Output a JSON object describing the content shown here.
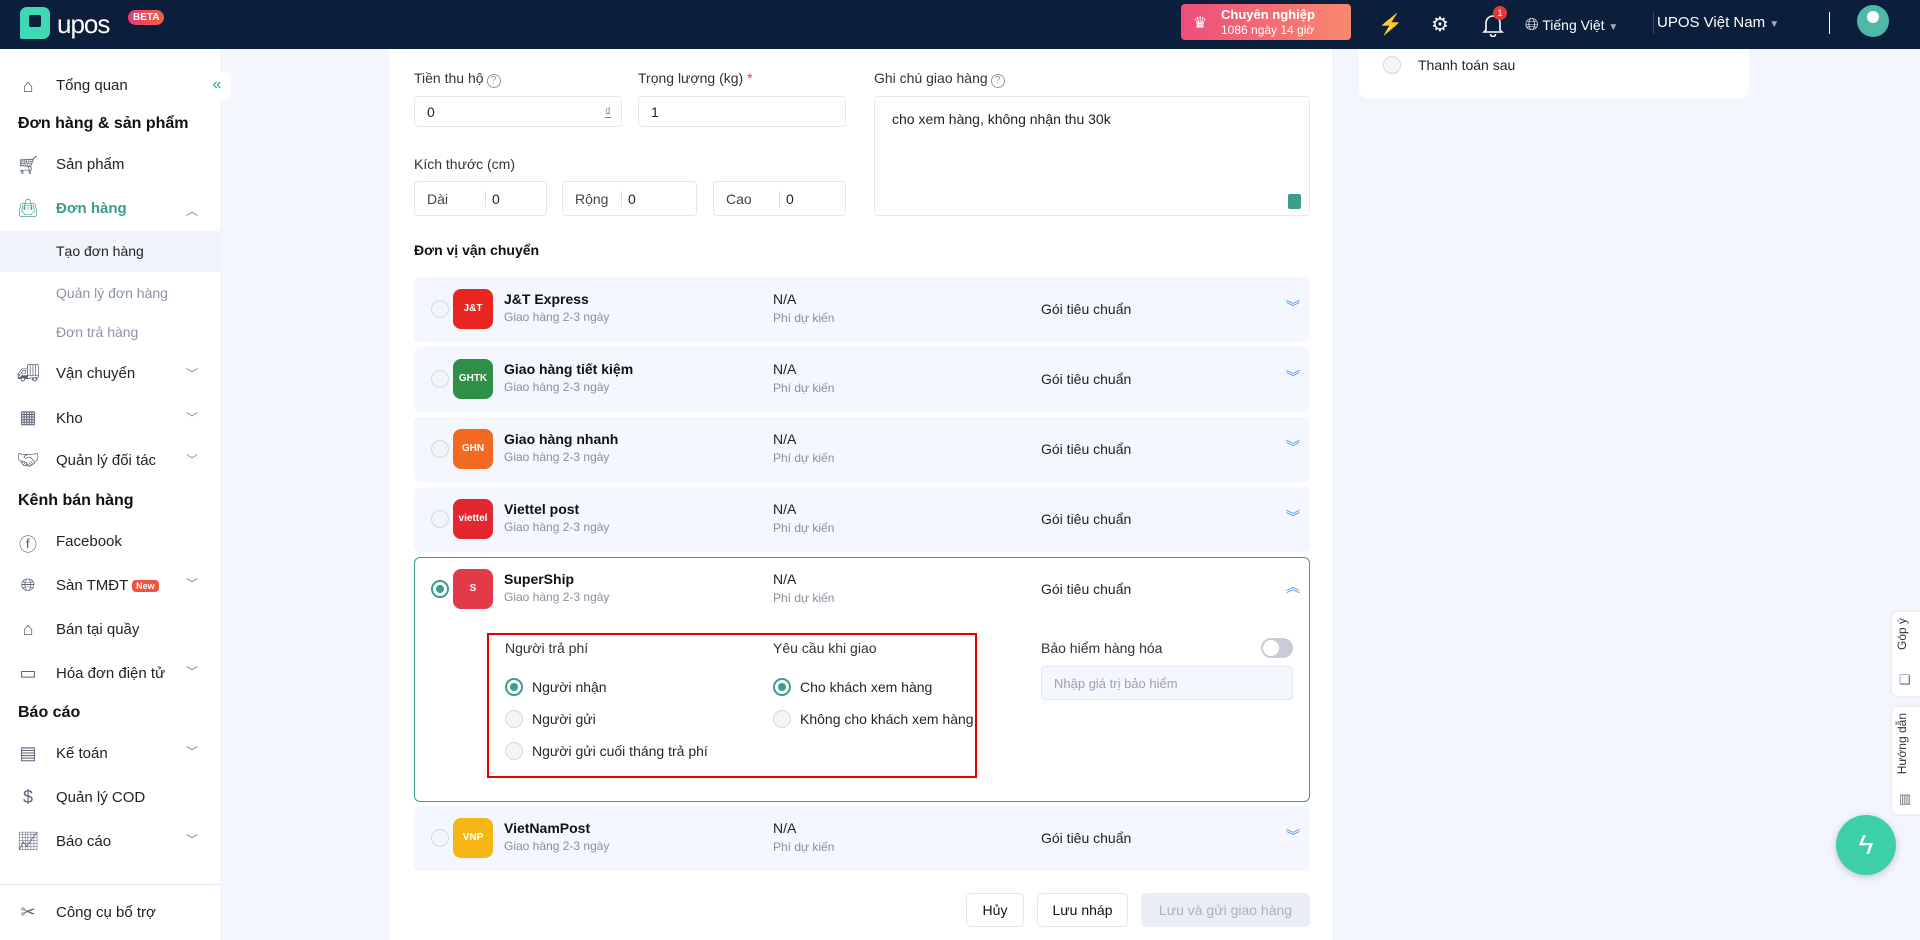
{
  "header": {
    "logo": "upos",
    "beta": "BETA",
    "plan_title": "Chuyên nghiệp",
    "plan_remaining": "1086 ngày 14 giờ",
    "notification_count": "1",
    "language": "Tiếng Việt",
    "company": "UPOS Việt Nam"
  },
  "sidebar": {
    "overview": "Tổng quan",
    "section_orders": "Đơn hàng & sản phẩm",
    "products": "Sản phẩm",
    "orders": "Đơn hàng",
    "create_order": "Tạo đơn hàng",
    "manage_orders": "Quản lý đơn hàng",
    "returns": "Đơn trả hàng",
    "shipping": "Vận chuyển",
    "warehouse": "Kho",
    "partners": "Quản lý đối tác",
    "section_channels": "Kênh bán hàng",
    "facebook": "Facebook",
    "ecommerce": "Sàn TMĐT",
    "new_badge": "New",
    "pos": "Bán tại quầy",
    "einvoice": "Hóa đơn điện tử",
    "section_reports": "Báo cáo",
    "accounting": "Kế toán",
    "cod": "Quản lý COD",
    "reports": "Báo cáo",
    "tools": "Công cụ bổ trợ"
  },
  "form": {
    "cod_label": "Tiền thu hộ",
    "cod_value": "0",
    "currency": "₫",
    "weight_label": "Trọng lượng (kg)",
    "required": "*",
    "weight_value": "1",
    "note_label": "Ghi chú giao hàng",
    "note_value": "cho xem hàng, không nhận thu 30k",
    "size_label": "Kích thước (cm)",
    "length_label": "Dài",
    "length_value": "0",
    "width_label": "Rộng",
    "width_value": "0",
    "height_label": "Cao",
    "height_value": "0",
    "carrier_section": "Đơn vị vận chuyển"
  },
  "carriers": [
    {
      "name": "J&T Express",
      "days": "Giao hàng 2-3 ngày",
      "fee": "N/A",
      "fee_label": "Phí dự kiến",
      "package": "Gói tiêu chuẩn",
      "logo": "J&T",
      "color": "#e8261f",
      "selected": false
    },
    {
      "name": "Giao hàng tiết kiệm",
      "days": "Giao hàng 2-3 ngày",
      "fee": "N/A",
      "fee_label": "Phí dự kiến",
      "package": "Gói tiêu chuẩn",
      "logo": "GHTK",
      "color": "#2f8f46",
      "selected": false
    },
    {
      "name": "Giao hàng nhanh",
      "days": "Giao hàng 2-3 ngày",
      "fee": "N/A",
      "fee_label": "Phí dự kiến",
      "package": "Gói tiêu chuẩn",
      "logo": "GHN",
      "color": "#f26a22",
      "selected": false
    },
    {
      "name": "Viettel post",
      "days": "Giao hàng 2-3 ngày",
      "fee": "N/A",
      "fee_label": "Phí dự kiến",
      "package": "Gói tiêu chuẩn",
      "logo": "viettel",
      "color": "#e3262f",
      "selected": false
    },
    {
      "name": "SuperShip",
      "days": "Giao hàng 2-3 ngày",
      "fee": "N/A",
      "fee_label": "Phí dự kiến",
      "package": "Gói tiêu chuẩn",
      "logo": "S",
      "color": "#e23a46",
      "selected": true
    },
    {
      "name": "VietNamPost",
      "days": "Giao hàng 2-3 ngày",
      "fee": "N/A",
      "fee_label": "Phí dự kiến",
      "package": "Gói tiêu chuẩn",
      "logo": "VNP",
      "color": "#f6b715",
      "selected": false
    }
  ],
  "supership_options": {
    "payer_label": "Người trả phí",
    "payers": [
      {
        "label": "Người nhận",
        "checked": true
      },
      {
        "label": "Người gửi",
        "checked": false
      },
      {
        "label": "Người gửi cuối tháng trả phí",
        "checked": false
      }
    ],
    "delivery_label": "Yêu cầu khi giao",
    "delivery": [
      {
        "label": "Cho khách xem hàng",
        "checked": true
      },
      {
        "label": "Không cho khách xem hàng",
        "checked": false
      }
    ],
    "insurance_label": "Bảo hiểm hàng hóa",
    "insurance_enabled": false,
    "insurance_placeholder": "Nhập giá trị bảo hiểm"
  },
  "payment": {
    "pay_later": "Thanh toán sau"
  },
  "footer": {
    "cancel": "Hủy",
    "draft": "Lưu nháp",
    "submit": "Lưu và gửi giao hàng"
  },
  "side_tabs": {
    "feedback": "Góp ý",
    "guide": "Hướng dẫn"
  },
  "colors": {
    "accent": "#3a9e8e",
    "header_bg": "#0b1f3d",
    "highlight": "#e00000"
  }
}
